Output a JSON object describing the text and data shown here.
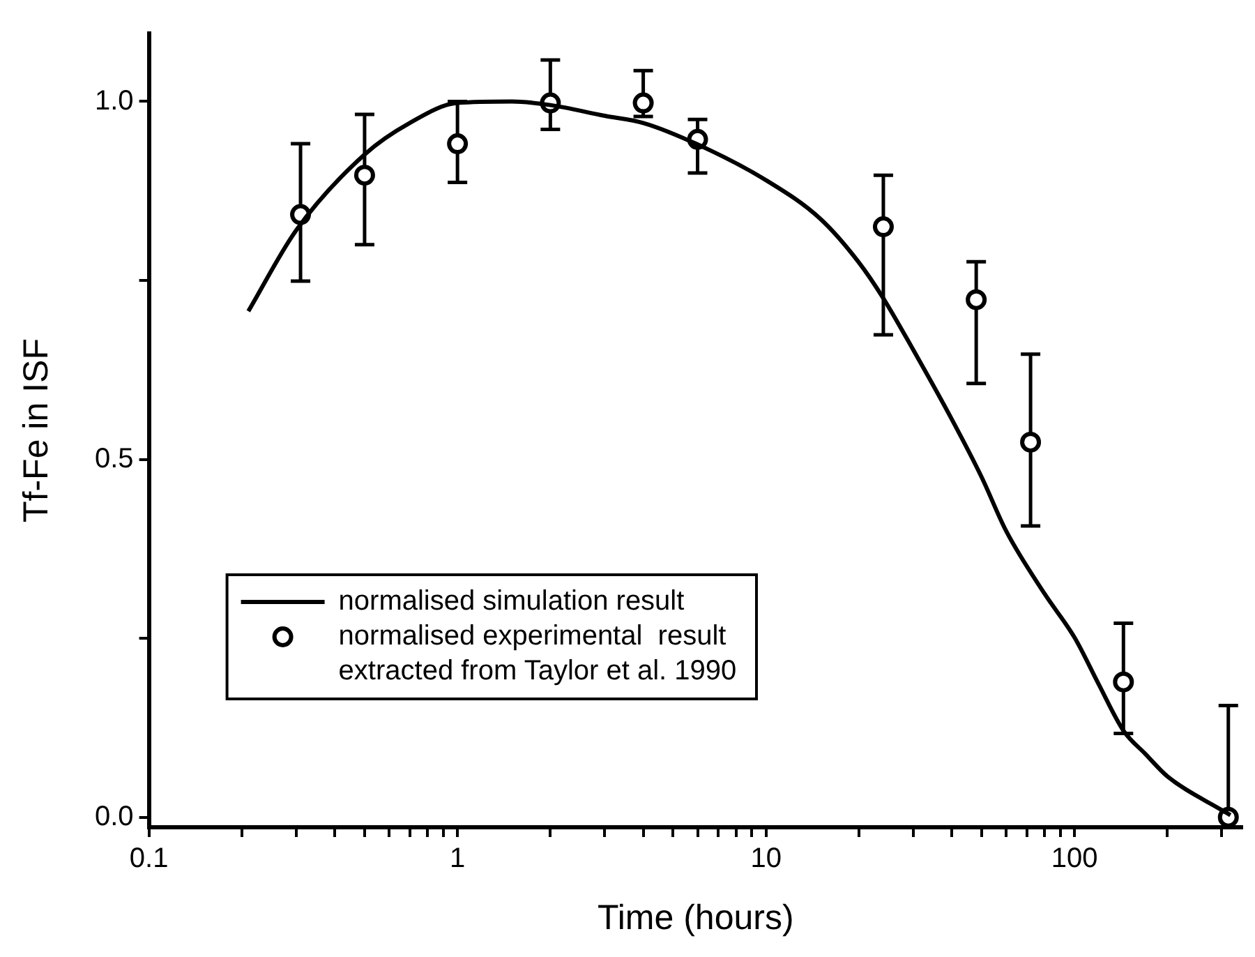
{
  "chart_data": {
    "type": "line",
    "xlabel": "Time (hours)",
    "ylabel": "Tf-Fe in ISF",
    "log": "x",
    "grid": false,
    "legend": "bottom left",
    "xlim": [
      0.1,
      350
    ],
    "ylim": [
      -0.014,
      1.095
    ],
    "xticks": [
      0.1,
      {
        "value": 0.2,
        "label": null
      },
      {
        "value": 0.3,
        "label": null
      },
      {
        "value": 0.4,
        "label": null
      },
      {
        "value": 0.5,
        "label": null
      },
      {
        "value": 0.6,
        "label": null
      },
      {
        "value": 0.7,
        "label": null
      },
      {
        "value": 0.8,
        "label": null
      },
      {
        "value": 0.9,
        "label": null
      },
      1,
      {
        "value": 2,
        "label": null
      },
      {
        "value": 3,
        "label": null
      },
      {
        "value": 4,
        "label": null
      },
      {
        "value": 5,
        "label": null
      },
      {
        "value": 6,
        "label": null
      },
      {
        "value": 7,
        "label": null
      },
      {
        "value": 8,
        "label": null
      },
      {
        "value": 9,
        "label": null
      },
      10,
      {
        "value": 20,
        "label": null
      },
      {
        "value": 30,
        "label": null
      },
      {
        "value": 40,
        "label": null
      },
      {
        "value": 50,
        "label": null
      },
      {
        "value": 60,
        "label": null
      },
      {
        "value": 70,
        "label": null
      },
      {
        "value": 80,
        "label": null
      },
      {
        "value": 90,
        "label": null
      },
      100,
      {
        "value": 200,
        "label": null
      },
      {
        "value": 300,
        "label": null
      }
    ],
    "yticks": [
      {
        "value": 0,
        "label": "0.0"
      },
      {
        "value": 0.25,
        "label": null
      },
      {
        "value": 0.5,
        "label": "0.5"
      },
      {
        "value": 0.75,
        "label": null
      },
      {
        "value": 1,
        "label": "1.0"
      }
    ],
    "series": [
      {
        "name": "normalised simulation result",
        "type": "line",
        "color": "#000000",
        "marker": "none",
        "line_style": "solid",
        "x": [
          0.21,
          0.3,
          0.5,
          0.7,
          1,
          1.5,
          2,
          3,
          4,
          6,
          10,
          15,
          20,
          24,
          30,
          40,
          50,
          60,
          80,
          100,
          120,
          144,
          170,
          200,
          300,
          320
        ],
        "values": [
          0.707,
          0.82,
          0.926,
          0.97,
          0.998,
          1.0,
          0.995,
          0.98,
          0.97,
          0.94,
          0.89,
          0.836,
          0.775,
          0.725,
          0.653,
          0.556,
          0.475,
          0.4,
          0.312,
          0.251,
          0.185,
          0.121,
          0.088,
          0.057,
          0.01,
          0.003
        ]
      },
      {
        "name": "normalised experimental  result extracted from Taylor et al. 1990",
        "type": "scatter",
        "color": "#000000",
        "marker": "circle",
        "x": [
          0.31,
          0.5,
          1,
          2,
          4,
          6,
          24,
          48,
          72,
          144,
          315
        ],
        "values": [
          0.842,
          0.897,
          0.941,
          0.998,
          0.998,
          0.947,
          0.825,
          0.723,
          0.524,
          0.189,
          0
        ],
        "errors": [
          [
            0.749,
            0.941
          ],
          [
            0.8,
            0.982
          ],
          [
            0.887,
            1.0
          ],
          [
            0.961,
            1.058
          ],
          [
            0.979,
            1.043
          ],
          [
            0.9,
            0.975
          ],
          [
            0.674,
            0.897
          ],
          [
            0.606,
            0.776
          ],
          [
            0.407,
            0.647
          ],
          [
            0.117,
            0.271
          ],
          [
            0,
            0.156
          ]
        ]
      }
    ]
  }
}
